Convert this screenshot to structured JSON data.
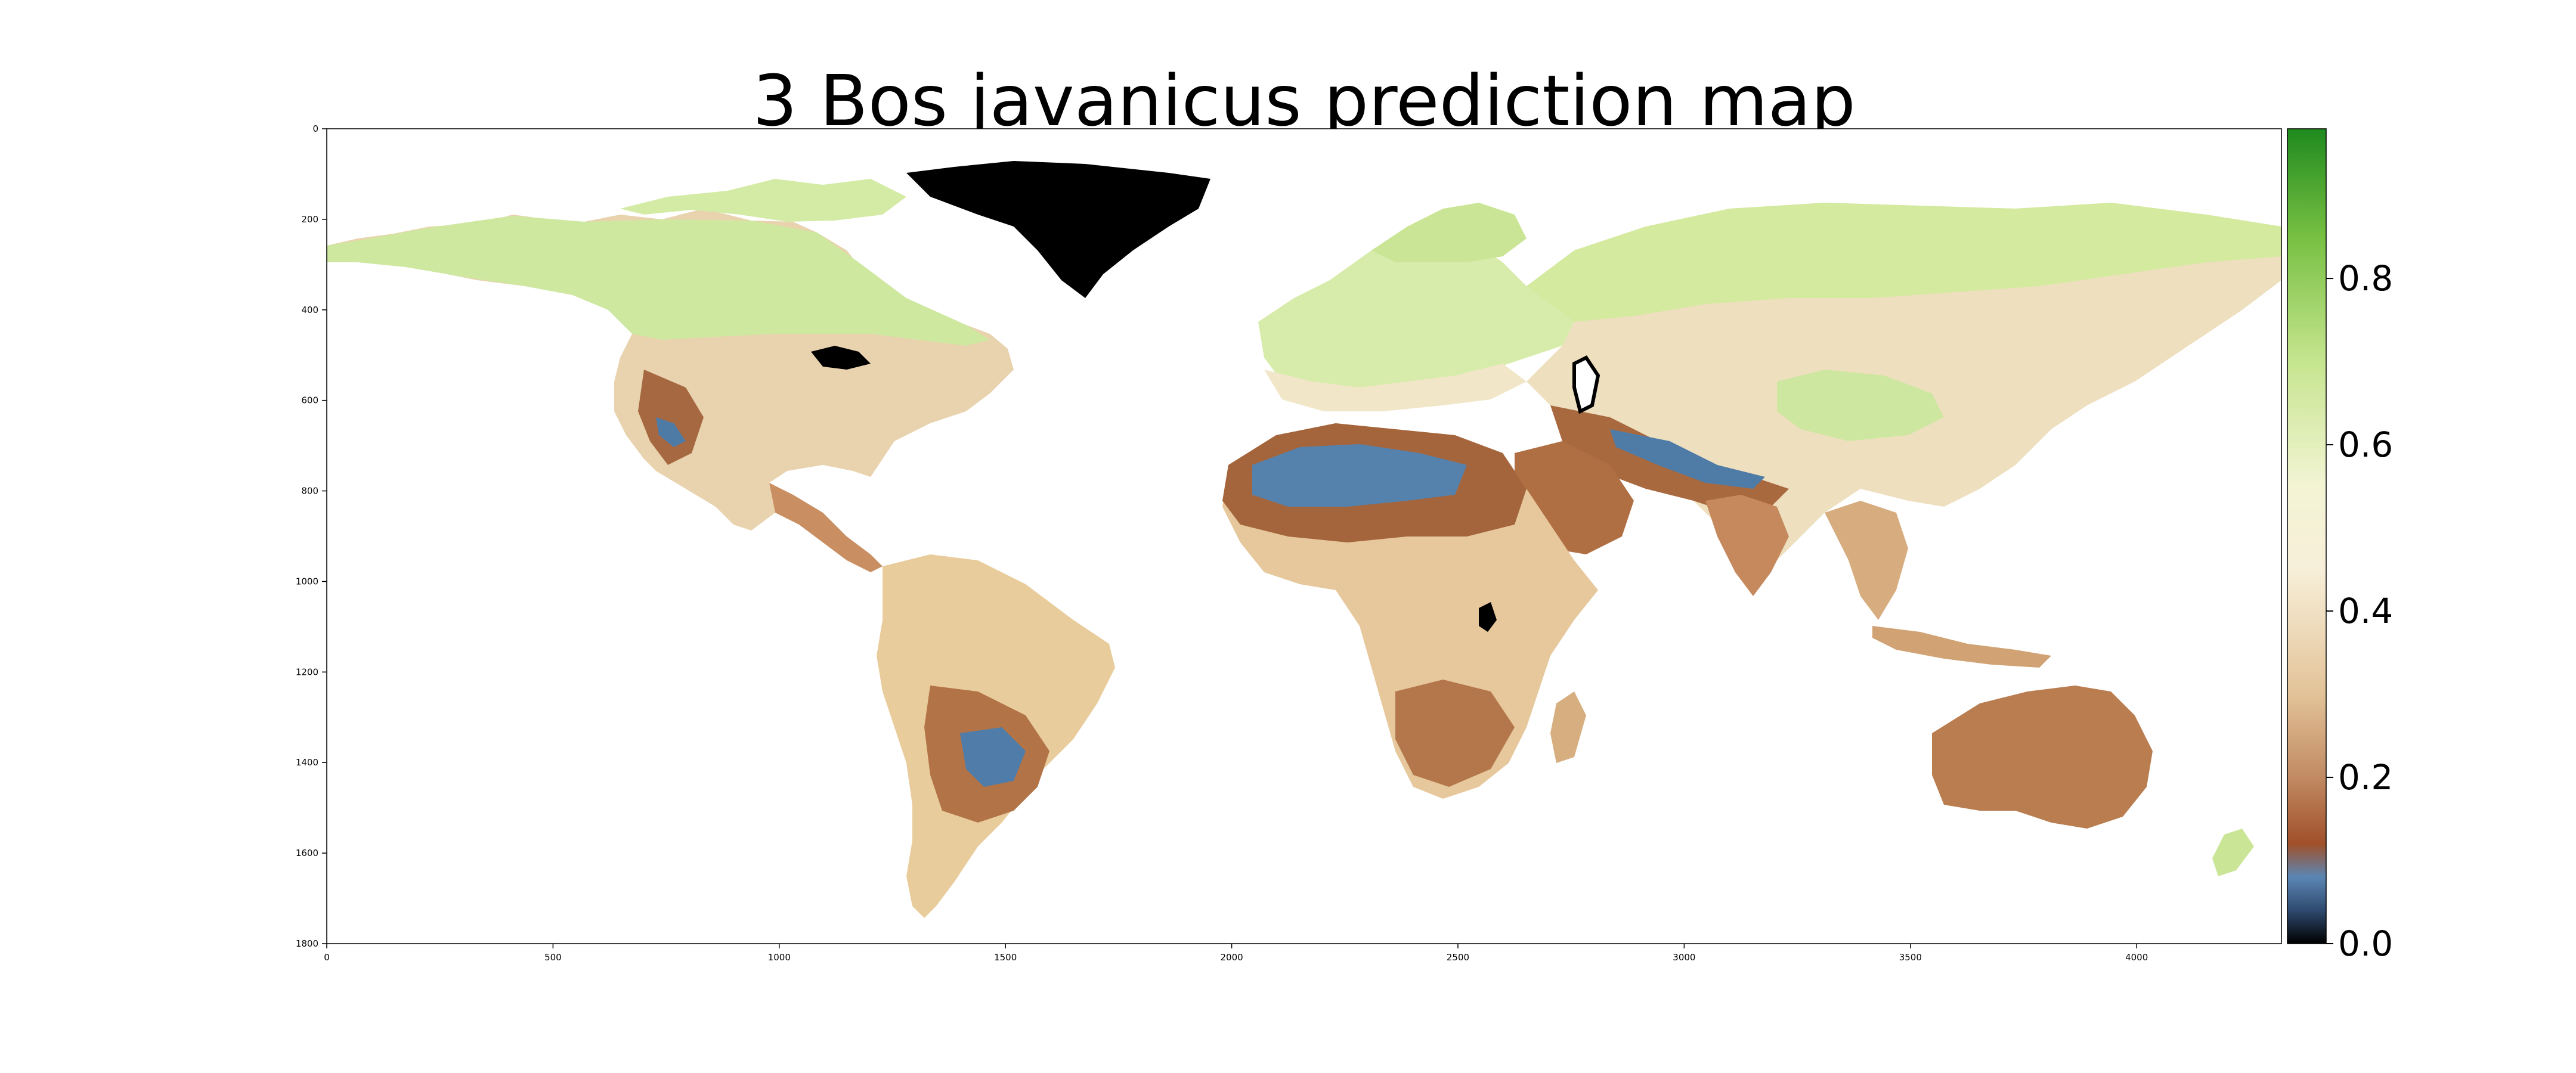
{
  "title": "3 Bos javanicus prediction map",
  "map": {
    "type": "raster-prediction-map",
    "species": "Bos javanicus",
    "x_range": [
      0,
      4320
    ],
    "y_range": [
      0,
      1800
    ],
    "y_inverted": true,
    "x_ticks": [
      "0",
      "500",
      "1000",
      "1500",
      "2000",
      "2500",
      "3000",
      "3500",
      "4000"
    ],
    "y_ticks": [
      "0",
      "200",
      "400",
      "600",
      "800",
      "1000",
      "1200",
      "1400",
      "1600",
      "1800"
    ],
    "colors": {
      "ocean": "#ffffff",
      "no_data": "#000000",
      "low": "#4a78a8",
      "mid_low": "#a3613a",
      "mid": "#f3ead0",
      "high": "#c9e59a"
    }
  },
  "colorbar": {
    "range": [
      0.0,
      0.98
    ],
    "tick_values": [
      0.0,
      0.2,
      0.4,
      0.6,
      0.8
    ],
    "tick_labels": [
      "0.0",
      "0.2",
      "0.4",
      "0.6",
      "0.8"
    ],
    "stops": [
      {
        "value": 0.0,
        "color": "#000000"
      },
      {
        "value": 0.04,
        "color": "#2e4a6e"
      },
      {
        "value": 0.08,
        "color": "#5b86b4"
      },
      {
        "value": 0.12,
        "color": "#a0502a"
      },
      {
        "value": 0.2,
        "color": "#c18a63"
      },
      {
        "value": 0.3,
        "color": "#e3c398"
      },
      {
        "value": 0.45,
        "color": "#f7efd9"
      },
      {
        "value": 0.55,
        "color": "#f3f4d4"
      },
      {
        "value": 0.7,
        "color": "#c6e58f"
      },
      {
        "value": 0.85,
        "color": "#77c043"
      },
      {
        "value": 0.98,
        "color": "#1f8a1e"
      }
    ]
  }
}
